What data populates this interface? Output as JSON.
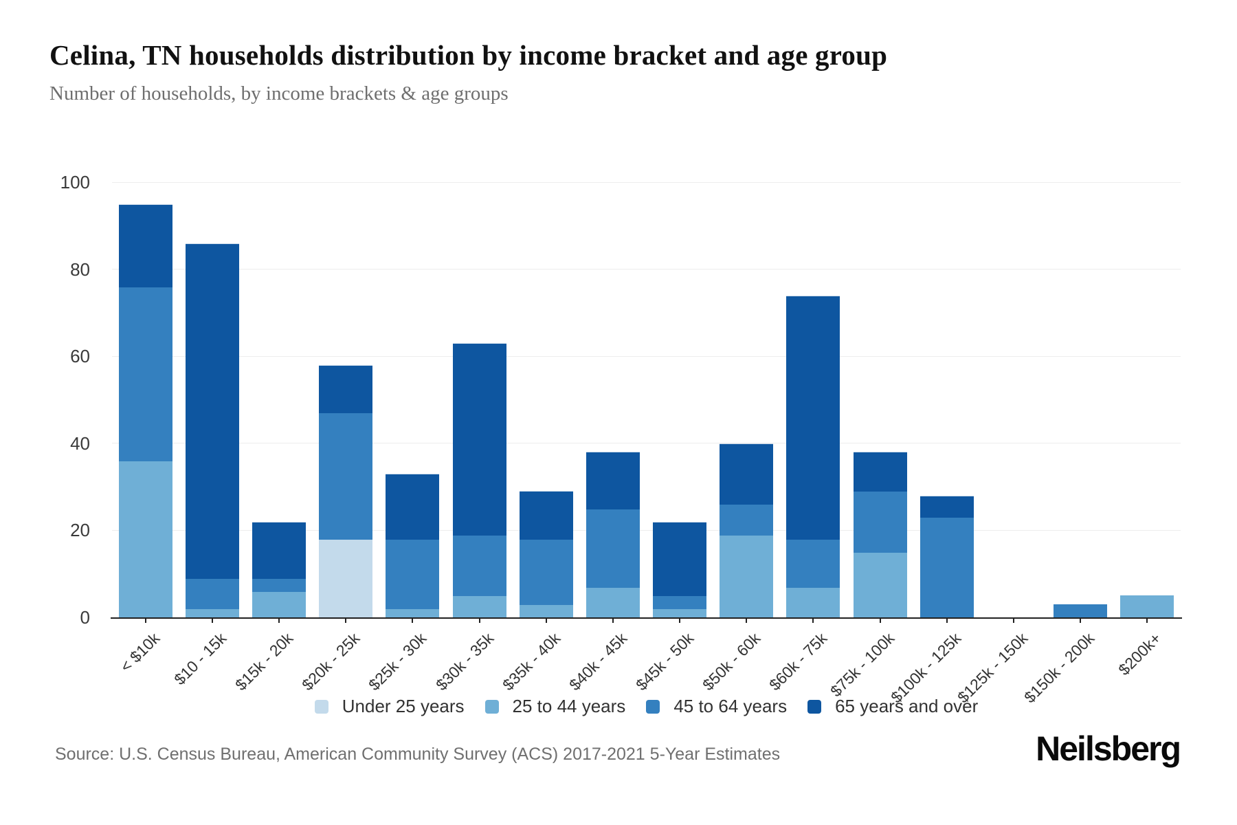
{
  "chart_data": {
    "type": "bar",
    "stacked": true,
    "title": "Celina, TN households distribution by income bracket and age group",
    "subtitle": "Number of households, by income brackets & age groups",
    "categories": [
      "< $10k",
      "$10 - 15k",
      "$15k - 20k",
      "$20k - 25k",
      "$25k - 30k",
      "$30k - 35k",
      "$35k - 40k",
      "$40k - 45k",
      "$45k - 50k",
      "$50k - 60k",
      "$60k - 75k",
      "$75k - 100k",
      "$100k - 125k",
      "$125k - 150k",
      "$150k - 200k",
      "$200k+"
    ],
    "series": [
      {
        "name": "Under 25 years",
        "color": "#c3daeb",
        "values": [
          0,
          0,
          0,
          18,
          0,
          0,
          0,
          0,
          0,
          0,
          0,
          0,
          0,
          0,
          0,
          0
        ]
      },
      {
        "name": "25 to 44 years",
        "color": "#6fafd6",
        "values": [
          36,
          2,
          6,
          0,
          2,
          5,
          3,
          7,
          2,
          19,
          7,
          15,
          0,
          0,
          0,
          5
        ]
      },
      {
        "name": "45 to 64 years",
        "color": "#3480bf",
        "values": [
          40,
          7,
          3,
          29,
          16,
          14,
          15,
          18,
          3,
          7,
          11,
          14,
          23,
          0,
          3,
          0
        ]
      },
      {
        "name": "65 years and over",
        "color": "#0e56a0",
        "values": [
          19,
          77,
          13,
          11,
          15,
          44,
          11,
          13,
          17,
          14,
          56,
          9,
          5,
          0,
          0,
          0
        ]
      }
    ],
    "totals": [
      95,
      86,
      22,
      58,
      33,
      63,
      29,
      38,
      22,
      40,
      74,
      38,
      28,
      0,
      3,
      5
    ],
    "ylim": [
      0,
      100
    ],
    "yticks": [
      0,
      20,
      40,
      60,
      80,
      100
    ],
    "grid": true,
    "xlabel": "",
    "ylabel": "",
    "legend_position": "bottom"
  },
  "footer": {
    "source": "Source: U.S. Census Bureau, American Community Survey (ACS) 2017-2021 5-Year Estimates",
    "logo": "Neilsberg"
  }
}
